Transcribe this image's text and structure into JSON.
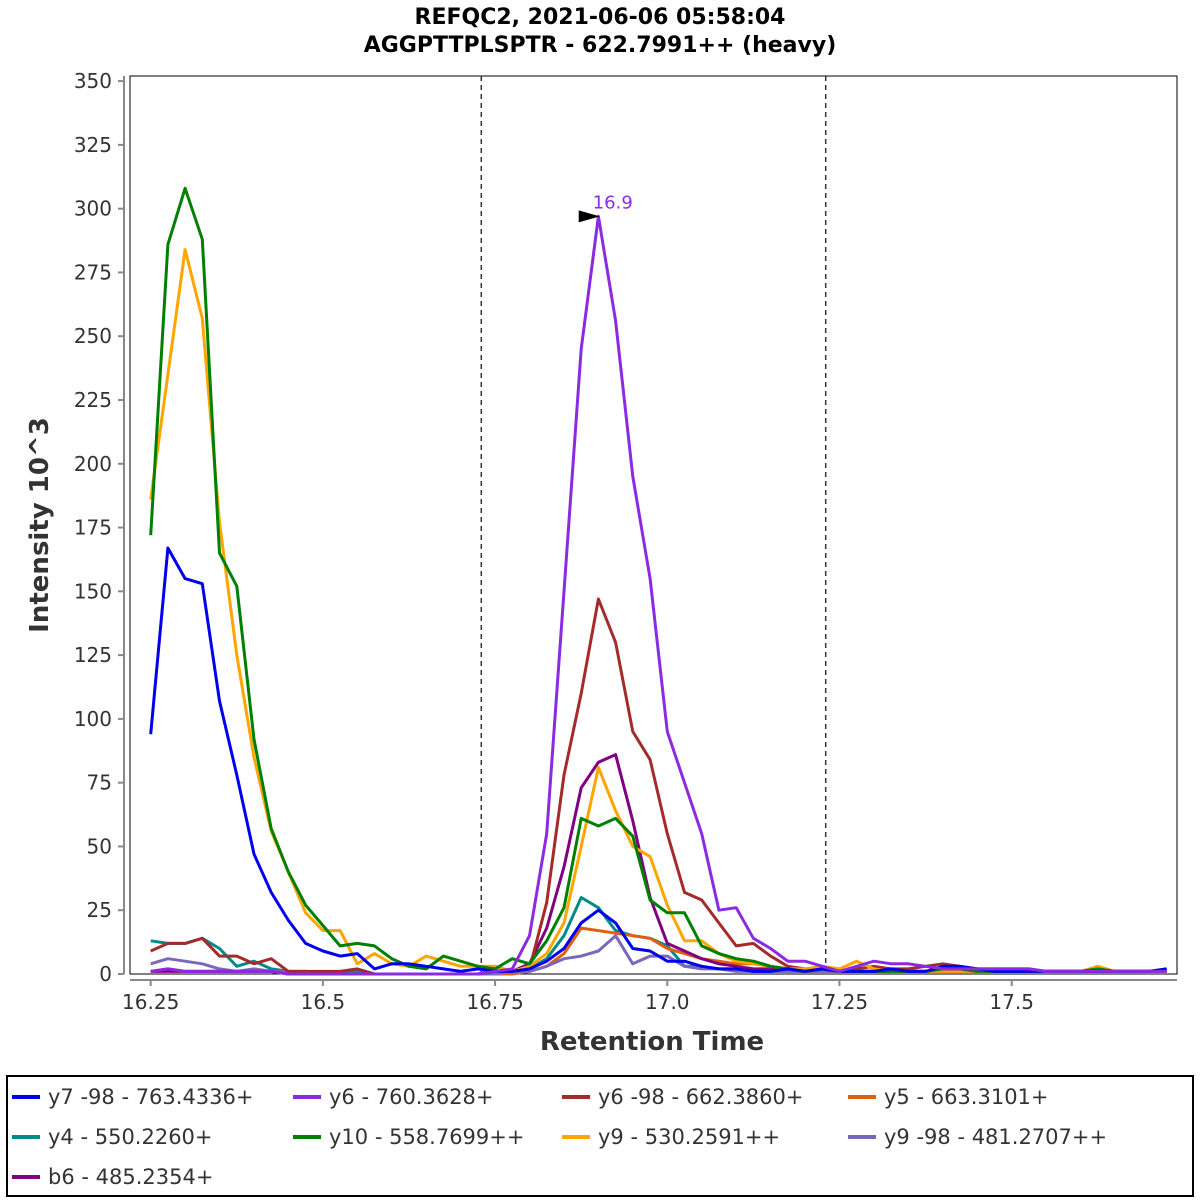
{
  "chart_data": {
    "type": "line",
    "title": "REFQC2, 2021-06-06 05:58:04",
    "subtitle": "AGGPTTPLSPTR - 622.7991++ (heavy)",
    "xlabel": "Retention Time",
    "ylabel": "Intensity 10^3",
    "xlim": [
      16.22,
      17.74
    ],
    "ylim": [
      0,
      352
    ],
    "xticks": [
      16.25,
      16.5,
      16.75,
      17.0,
      17.25,
      17.5
    ],
    "xtick_labels": [
      "16.25",
      "16.5",
      "16.75",
      "17.0",
      "17.25",
      "17.5"
    ],
    "yticks": [
      0,
      25,
      50,
      75,
      100,
      125,
      150,
      175,
      200,
      225,
      250,
      275,
      300,
      325,
      350
    ],
    "ytick_labels": [
      "0",
      "25",
      "50",
      "75",
      "100",
      "125",
      "150",
      "175",
      "200",
      "225",
      "250",
      "275",
      "300",
      "325",
      "350"
    ],
    "grid": false,
    "legend_position": "bottom",
    "vlines": [
      16.73,
      17.23
    ],
    "annotations": [
      {
        "text": "16.9",
        "x": 16.915,
        "y": 297,
        "color": "#8a2be2"
      }
    ],
    "x": [
      16.25,
      16.275,
      16.3,
      16.325,
      16.35,
      16.375,
      16.4,
      16.425,
      16.45,
      16.475,
      16.5,
      16.525,
      16.55,
      16.575,
      16.6,
      16.625,
      16.65,
      16.675,
      16.7,
      16.725,
      16.75,
      16.775,
      16.8,
      16.825,
      16.85,
      16.875,
      16.9,
      16.925,
      16.95,
      16.975,
      17.0,
      17.025,
      17.05,
      17.075,
      17.1,
      17.125,
      17.15,
      17.175,
      17.2,
      17.225,
      17.25,
      17.275,
      17.3,
      17.325,
      17.35,
      17.375,
      17.4,
      17.425,
      17.45,
      17.475,
      17.5,
      17.525,
      17.55,
      17.575,
      17.6,
      17.625,
      17.65,
      17.675,
      17.7,
      17.725
    ],
    "series": [
      {
        "name": "y7 -98 - 763.4336+",
        "color": "#0000ee",
        "values": [
          94,
          167,
          155,
          153,
          107,
          78,
          47,
          32,
          21,
          12,
          9,
          7,
          8,
          2,
          4,
          4,
          3,
          2,
          1,
          2,
          1,
          1,
          2,
          5,
          10,
          20,
          25,
          20,
          10,
          9,
          5,
          5,
          3,
          2,
          2,
          1,
          1,
          2,
          1,
          2,
          1,
          1,
          1,
          2,
          1,
          1,
          3,
          3,
          2,
          1,
          1,
          1,
          1,
          1,
          1,
          1,
          1,
          1,
          1,
          2
        ]
      },
      {
        "name": "y6 - 760.3628+",
        "color": "#8a2be2",
        "values": [
          1,
          2,
          1,
          1,
          1,
          1,
          1,
          1,
          0,
          0,
          0,
          0,
          0,
          0,
          0,
          0,
          0,
          0,
          0,
          0,
          1,
          2,
          15,
          55,
          150,
          245,
          297,
          256,
          195,
          155,
          95,
          75,
          55,
          25,
          26,
          14,
          10,
          5,
          5,
          3,
          1,
          3,
          5,
          4,
          4,
          3,
          2,
          2,
          2,
          2,
          2,
          2,
          1,
          1,
          1,
          1,
          1,
          1,
          1,
          1
        ]
      },
      {
        "name": "y6 -98 - 662.3860+",
        "color": "#a52a2a",
        "values": [
          9,
          12,
          12,
          14,
          7,
          7,
          4,
          6,
          1,
          1,
          1,
          1,
          2,
          0,
          0,
          0,
          0,
          0,
          0,
          0,
          1,
          1,
          2,
          28,
          78,
          110,
          147,
          130,
          95,
          84,
          55,
          32,
          29,
          20,
          11,
          12,
          7,
          3,
          2,
          2,
          1,
          2,
          3,
          2,
          2,
          3,
          4,
          3,
          2,
          2,
          2,
          2,
          1,
          1,
          1,
          1,
          1,
          1,
          1,
          1
        ]
      },
      {
        "name": "y5 - 663.3101+",
        "color": "#e06010",
        "values": [
          1,
          2,
          1,
          1,
          1,
          1,
          1,
          1,
          0,
          0,
          0,
          0,
          0,
          0,
          0,
          0,
          0,
          0,
          0,
          0,
          0,
          0,
          1,
          3,
          8,
          18,
          17,
          16,
          15,
          14,
          10,
          8,
          6,
          5,
          4,
          4,
          3,
          2,
          1,
          1,
          1,
          1,
          1,
          1,
          1,
          1,
          1,
          1,
          1,
          1,
          1,
          1,
          1,
          1,
          1,
          1,
          1,
          1,
          1,
          1
        ]
      },
      {
        "name": "y4 - 550.2260+",
        "color": "#008b8b",
        "values": [
          13,
          12,
          12,
          14,
          10,
          3,
          5,
          2,
          1,
          1,
          0,
          0,
          1,
          0,
          0,
          0,
          0,
          0,
          0,
          0,
          1,
          1,
          2,
          6,
          15,
          30,
          26,
          17,
          15,
          14,
          11,
          3,
          3,
          2,
          2,
          1,
          1,
          1,
          1,
          1,
          1,
          1,
          1,
          1,
          1,
          1,
          1,
          1,
          1,
          1,
          1,
          1,
          1,
          1,
          1,
          1,
          1,
          1,
          1,
          1
        ]
      },
      {
        "name": "y10 - 558.7699++",
        "color": "#008000",
        "values": [
          172,
          286,
          308,
          288,
          165,
          152,
          92,
          57,
          40,
          27,
          19,
          11,
          12,
          11,
          6,
          3,
          2,
          7,
          5,
          3,
          2,
          6,
          4,
          13,
          26,
          61,
          58,
          61,
          54,
          29,
          24,
          24,
          11,
          8,
          6,
          5,
          3,
          2,
          1,
          2,
          1,
          1,
          1,
          1,
          1,
          1,
          2,
          2,
          1,
          1,
          1,
          1,
          1,
          1,
          1,
          2,
          1,
          1,
          1,
          2
        ]
      },
      {
        "name": "y9 - 530.2591++",
        "color": "#ffa500",
        "values": [
          186,
          235,
          284,
          257,
          177,
          125,
          85,
          56,
          40,
          24,
          17,
          17,
          4,
          8,
          4,
          3,
          7,
          5,
          3,
          3,
          3,
          1,
          3,
          8,
          20,
          50,
          81,
          64,
          50,
          46,
          27,
          13,
          13,
          8,
          5,
          4,
          3,
          2,
          2,
          3,
          2,
          5,
          2,
          1,
          1,
          1,
          1,
          1,
          1,
          1,
          1,
          1,
          1,
          1,
          1,
          3,
          1,
          1,
          1,
          1
        ]
      },
      {
        "name": "y9 -98 - 481.2707++",
        "color": "#7a68b8",
        "values": [
          4,
          6,
          5,
          4,
          2,
          1,
          2,
          1,
          1,
          0,
          0,
          0,
          0,
          0,
          0,
          0,
          0,
          0,
          0,
          0,
          0,
          1,
          1,
          3,
          6,
          7,
          9,
          15,
          4,
          7,
          7,
          3,
          2,
          2,
          1,
          1,
          1,
          1,
          1,
          1,
          1,
          1,
          1,
          1,
          1,
          1,
          1,
          1,
          1,
          1,
          1,
          1,
          1,
          1,
          1,
          1,
          1,
          1,
          1,
          1
        ]
      },
      {
        "name": "b6 - 485.2354+",
        "color": "#800080",
        "values": [
          1,
          1,
          1,
          1,
          1,
          1,
          1,
          1,
          0,
          0,
          0,
          0,
          0,
          0,
          0,
          0,
          0,
          0,
          0,
          0,
          1,
          1,
          4,
          18,
          42,
          73,
          83,
          86,
          60,
          30,
          12,
          9,
          6,
          4,
          3,
          2,
          2,
          2,
          1,
          2,
          1,
          1,
          1,
          1,
          1,
          1,
          1,
          1,
          1,
          1,
          1,
          1,
          1,
          1,
          1,
          1,
          1,
          1,
          1,
          1
        ]
      }
    ]
  }
}
